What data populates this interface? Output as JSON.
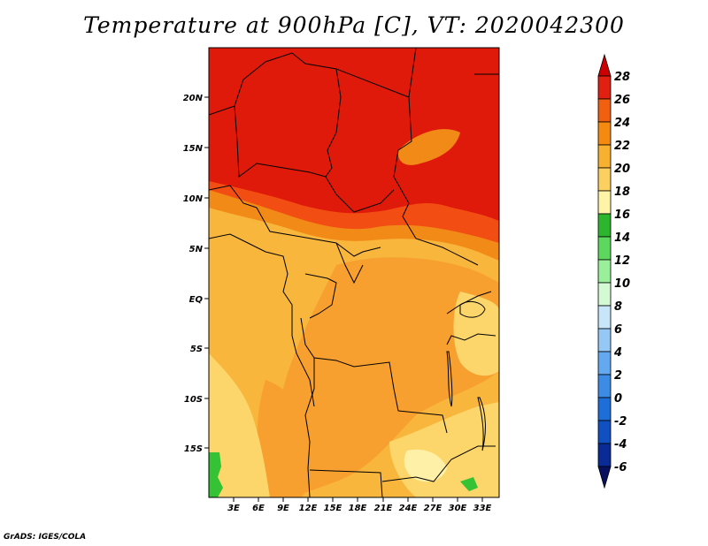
{
  "title": "Temperature at 900hPa [C], VT: 2020042300",
  "credit": "GrADS: IGES/COLA",
  "map": {
    "x_ticks": [
      "3E",
      "6E",
      "9E",
      "12E",
      "15E",
      "18E",
      "21E",
      "24E",
      "27E",
      "30E",
      "33E"
    ],
    "y_ticks": [
      "20N",
      "15N",
      "10N",
      "5N",
      "EQ",
      "5S",
      "10S",
      "15S"
    ]
  },
  "colorbar": {
    "levels": [
      "28",
      "26",
      "24",
      "22",
      "20",
      "18",
      "16",
      "14",
      "12",
      "10",
      "8",
      "6",
      "4",
      "2",
      "0",
      "-2",
      "-4",
      "-6"
    ],
    "colors": [
      "#cc0000",
      "#e02010",
      "#f06010",
      "#f58a10",
      "#f8b030",
      "#fcd060",
      "#fff3a8",
      "#2db52d",
      "#5ed75e",
      "#9af09a",
      "#d4fad4",
      "#c8e6fa",
      "#96c8f5",
      "#64a8f0",
      "#3c8ce6",
      "#1e6ed7",
      "#1050c0",
      "#0a2b96",
      "#081060"
    ]
  },
  "colors": {
    "deep_red": "#e01a0a",
    "red_orange": "#f24d12",
    "orange": "#f7a030",
    "light_orange": "#f9b63d",
    "pale": "#fcd66a",
    "green": "#35c235"
  }
}
